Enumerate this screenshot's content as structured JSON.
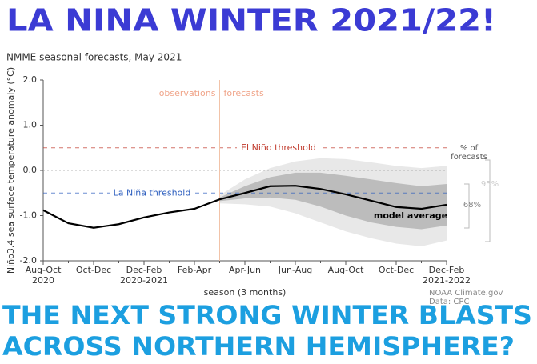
{
  "header": {
    "title": "LA NINA WINTER 2021/22!"
  },
  "chart_data": {
    "type": "line",
    "subtitle": "NMME seasonal forecasts, May 2021",
    "y_label": "Niño3.4 sea surface temperature anomaly (°C)",
    "x_label": "season (3 months)",
    "categories": [
      "Aug-Oct\n2020",
      null,
      "Oct-Dec",
      null,
      "Dec-Feb\n2020-2021",
      null,
      "Feb-Apr",
      null,
      "Apr-Jun",
      null,
      "Jun-Aug",
      null,
      "Aug-Oct",
      null,
      "Oct-Dec",
      null,
      "Dec-Feb\n2021-2022"
    ],
    "series": [
      {
        "name": "model average",
        "color": "#000000",
        "values": [
          -0.88,
          -1.17,
          -1.27,
          -1.19,
          -1.04,
          -0.93,
          -0.85,
          -0.64,
          -0.5,
          -0.35,
          -0.34,
          -0.41,
          -0.53,
          -0.67,
          -0.81,
          -0.85,
          -0.76
        ]
      }
    ],
    "bands": [
      {
        "name": "95%",
        "color": "#e8e8e8",
        "upper": [
          null,
          null,
          null,
          null,
          null,
          null,
          null,
          -0.55,
          -0.2,
          0.05,
          0.2,
          0.27,
          0.25,
          0.18,
          0.1,
          0.05,
          0.1
        ],
        "lower": [
          null,
          null,
          null,
          null,
          null,
          null,
          null,
          -0.73,
          -0.75,
          -0.8,
          -0.95,
          -1.15,
          -1.35,
          -1.5,
          -1.62,
          -1.68,
          -1.55
        ]
      },
      {
        "name": "68%",
        "color": "#bcbcbc",
        "upper": [
          null,
          null,
          null,
          null,
          null,
          null,
          null,
          -0.6,
          -0.35,
          -0.15,
          -0.05,
          -0.05,
          -0.12,
          -0.2,
          -0.28,
          -0.35,
          -0.3
        ],
        "lower": [
          null,
          null,
          null,
          null,
          null,
          null,
          null,
          -0.68,
          -0.62,
          -0.6,
          -0.65,
          -0.8,
          -1.0,
          -1.15,
          -1.25,
          -1.3,
          -1.22
        ]
      }
    ],
    "band_title": "% of\nforecasts",
    "reference_lines": [
      {
        "value": 0.5,
        "label": "El Niño threshold",
        "color": "#c0392b"
      },
      {
        "value": 0
      },
      {
        "value": -0.5,
        "label": "La Niña threshold",
        "color": "#2e5fbf"
      }
    ],
    "divider": {
      "left": "observations",
      "right": "forecasts"
    },
    "ylim": [
      -2,
      2
    ],
    "yticks": [
      {
        "value": 2,
        "label": "2.0"
      },
      {
        "value": 1,
        "label": "1.0"
      },
      {
        "value": 0,
        "label": "0.0"
      },
      {
        "value": -1,
        "label": "-1.0"
      },
      {
        "value": -2,
        "label": "-2.0"
      }
    ],
    "credit": "NOAA Climate.gov\nData: CPC"
  },
  "footer": {
    "lines": [
      "THE NEXT STRONG WINTER BLASTS",
      "ACROSS NORTHERN HEMISPHERE?"
    ]
  }
}
